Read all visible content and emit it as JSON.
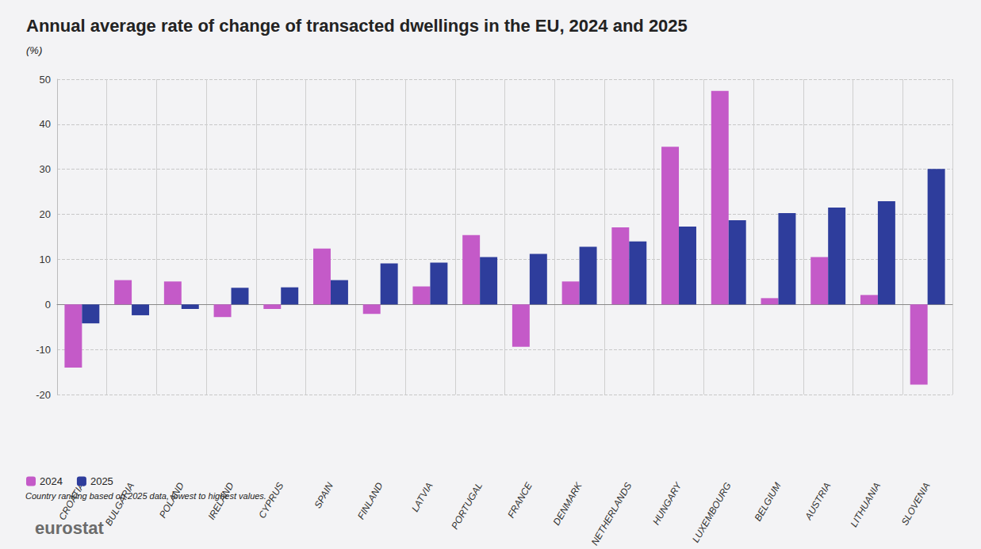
{
  "chart_data": {
    "type": "bar",
    "title": "Annual average rate of change of transacted dwellings in the EU, 2024 and 2025",
    "subtitle": "(%)",
    "annotations": [
      "Country ranking based on 2025 data, lowest to highest values.",
      "eurostat"
    ],
    "categories": [
      "CROATIA",
      "BULGARIA",
      "POLAND",
      "IRELAND",
      "CYPRUS",
      "SPAIN",
      "FINLAND",
      "LATVIA",
      "PORTUGAL",
      "FRANCE",
      "DENMARK",
      "NETHERLANDS",
      "HUNGARY",
      "LUXEMBOURG",
      "BELGIUM",
      "AUSTRIA",
      "LITHUANIA",
      "SLOVENIA"
    ],
    "series": [
      {
        "name": "2024",
        "color": "#c45ac8",
        "values": [
          -14.0,
          5.4,
          5.1,
          -2.8,
          -1.0,
          12.4,
          -2.1,
          4.0,
          15.4,
          -9.4,
          5.1,
          17.1,
          35.0,
          47.4,
          1.4,
          10.5,
          2.1,
          -17.8
        ]
      },
      {
        "name": "2025",
        "color": "#2e3d9c",
        "values": [
          -4.2,
          -2.4,
          -1.0,
          3.7,
          3.8,
          5.4,
          9.1,
          9.3,
          10.5,
          11.2,
          12.8,
          14.0,
          17.3,
          18.7,
          20.3,
          21.5,
          22.9,
          30.1
        ]
      }
    ],
    "ylim": [
      -20,
      50
    ],
    "yticks": [
      -20,
      -10,
      0,
      10,
      20,
      30,
      40,
      50
    ],
    "grid": true,
    "legend": "bottom-left"
  }
}
